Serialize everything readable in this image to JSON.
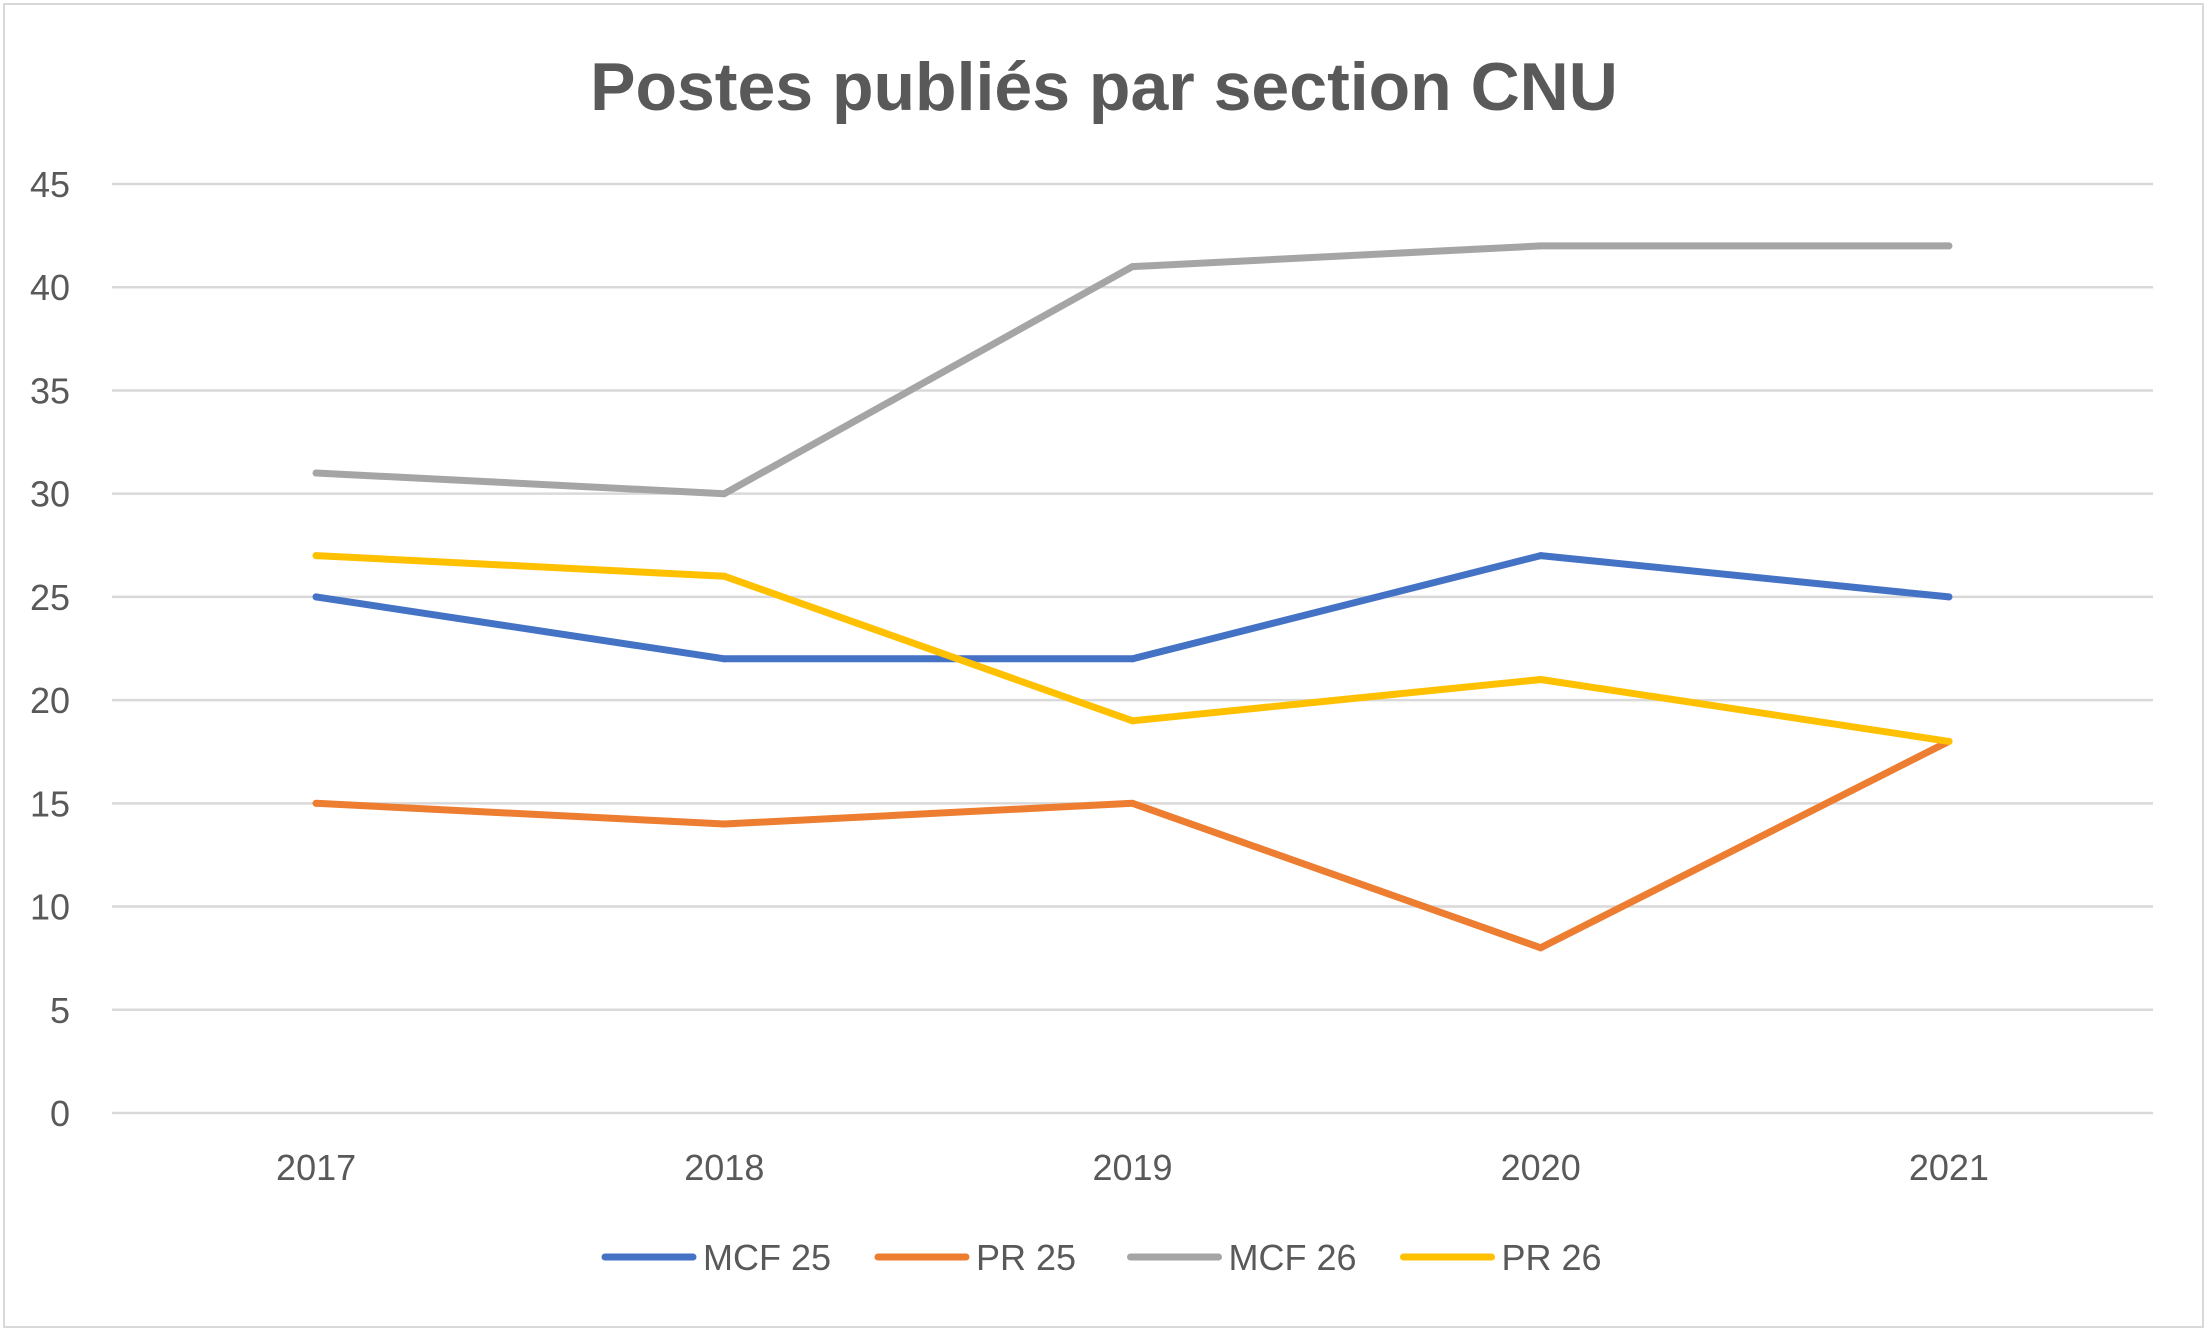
{
  "chart_data": {
    "type": "line",
    "title": "Postes publiés par section CNU",
    "xlabel": "",
    "ylabel": "",
    "categories": [
      "2017",
      "2018",
      "2019",
      "2020",
      "2021"
    ],
    "ylim": [
      0,
      45
    ],
    "yticks": [
      "0",
      "5",
      "10",
      "15",
      "20",
      "25",
      "30",
      "35",
      "40",
      "45"
    ],
    "grid": true,
    "legend": "bottom",
    "series": [
      {
        "name": "MCF 25",
        "color": "#4472c4",
        "values": [
          25,
          22,
          22,
          27,
          25
        ]
      },
      {
        "name": "PR 25",
        "color": "#ed7d31",
        "values": [
          15,
          14,
          15,
          8,
          18
        ]
      },
      {
        "name": "MCF 26",
        "color": "#a5a5a5",
        "values": [
          31,
          30,
          41,
          42,
          42
        ]
      },
      {
        "name": "PR 26",
        "color": "#ffc000",
        "values": [
          27,
          26,
          19,
          21,
          18
        ]
      }
    ]
  }
}
